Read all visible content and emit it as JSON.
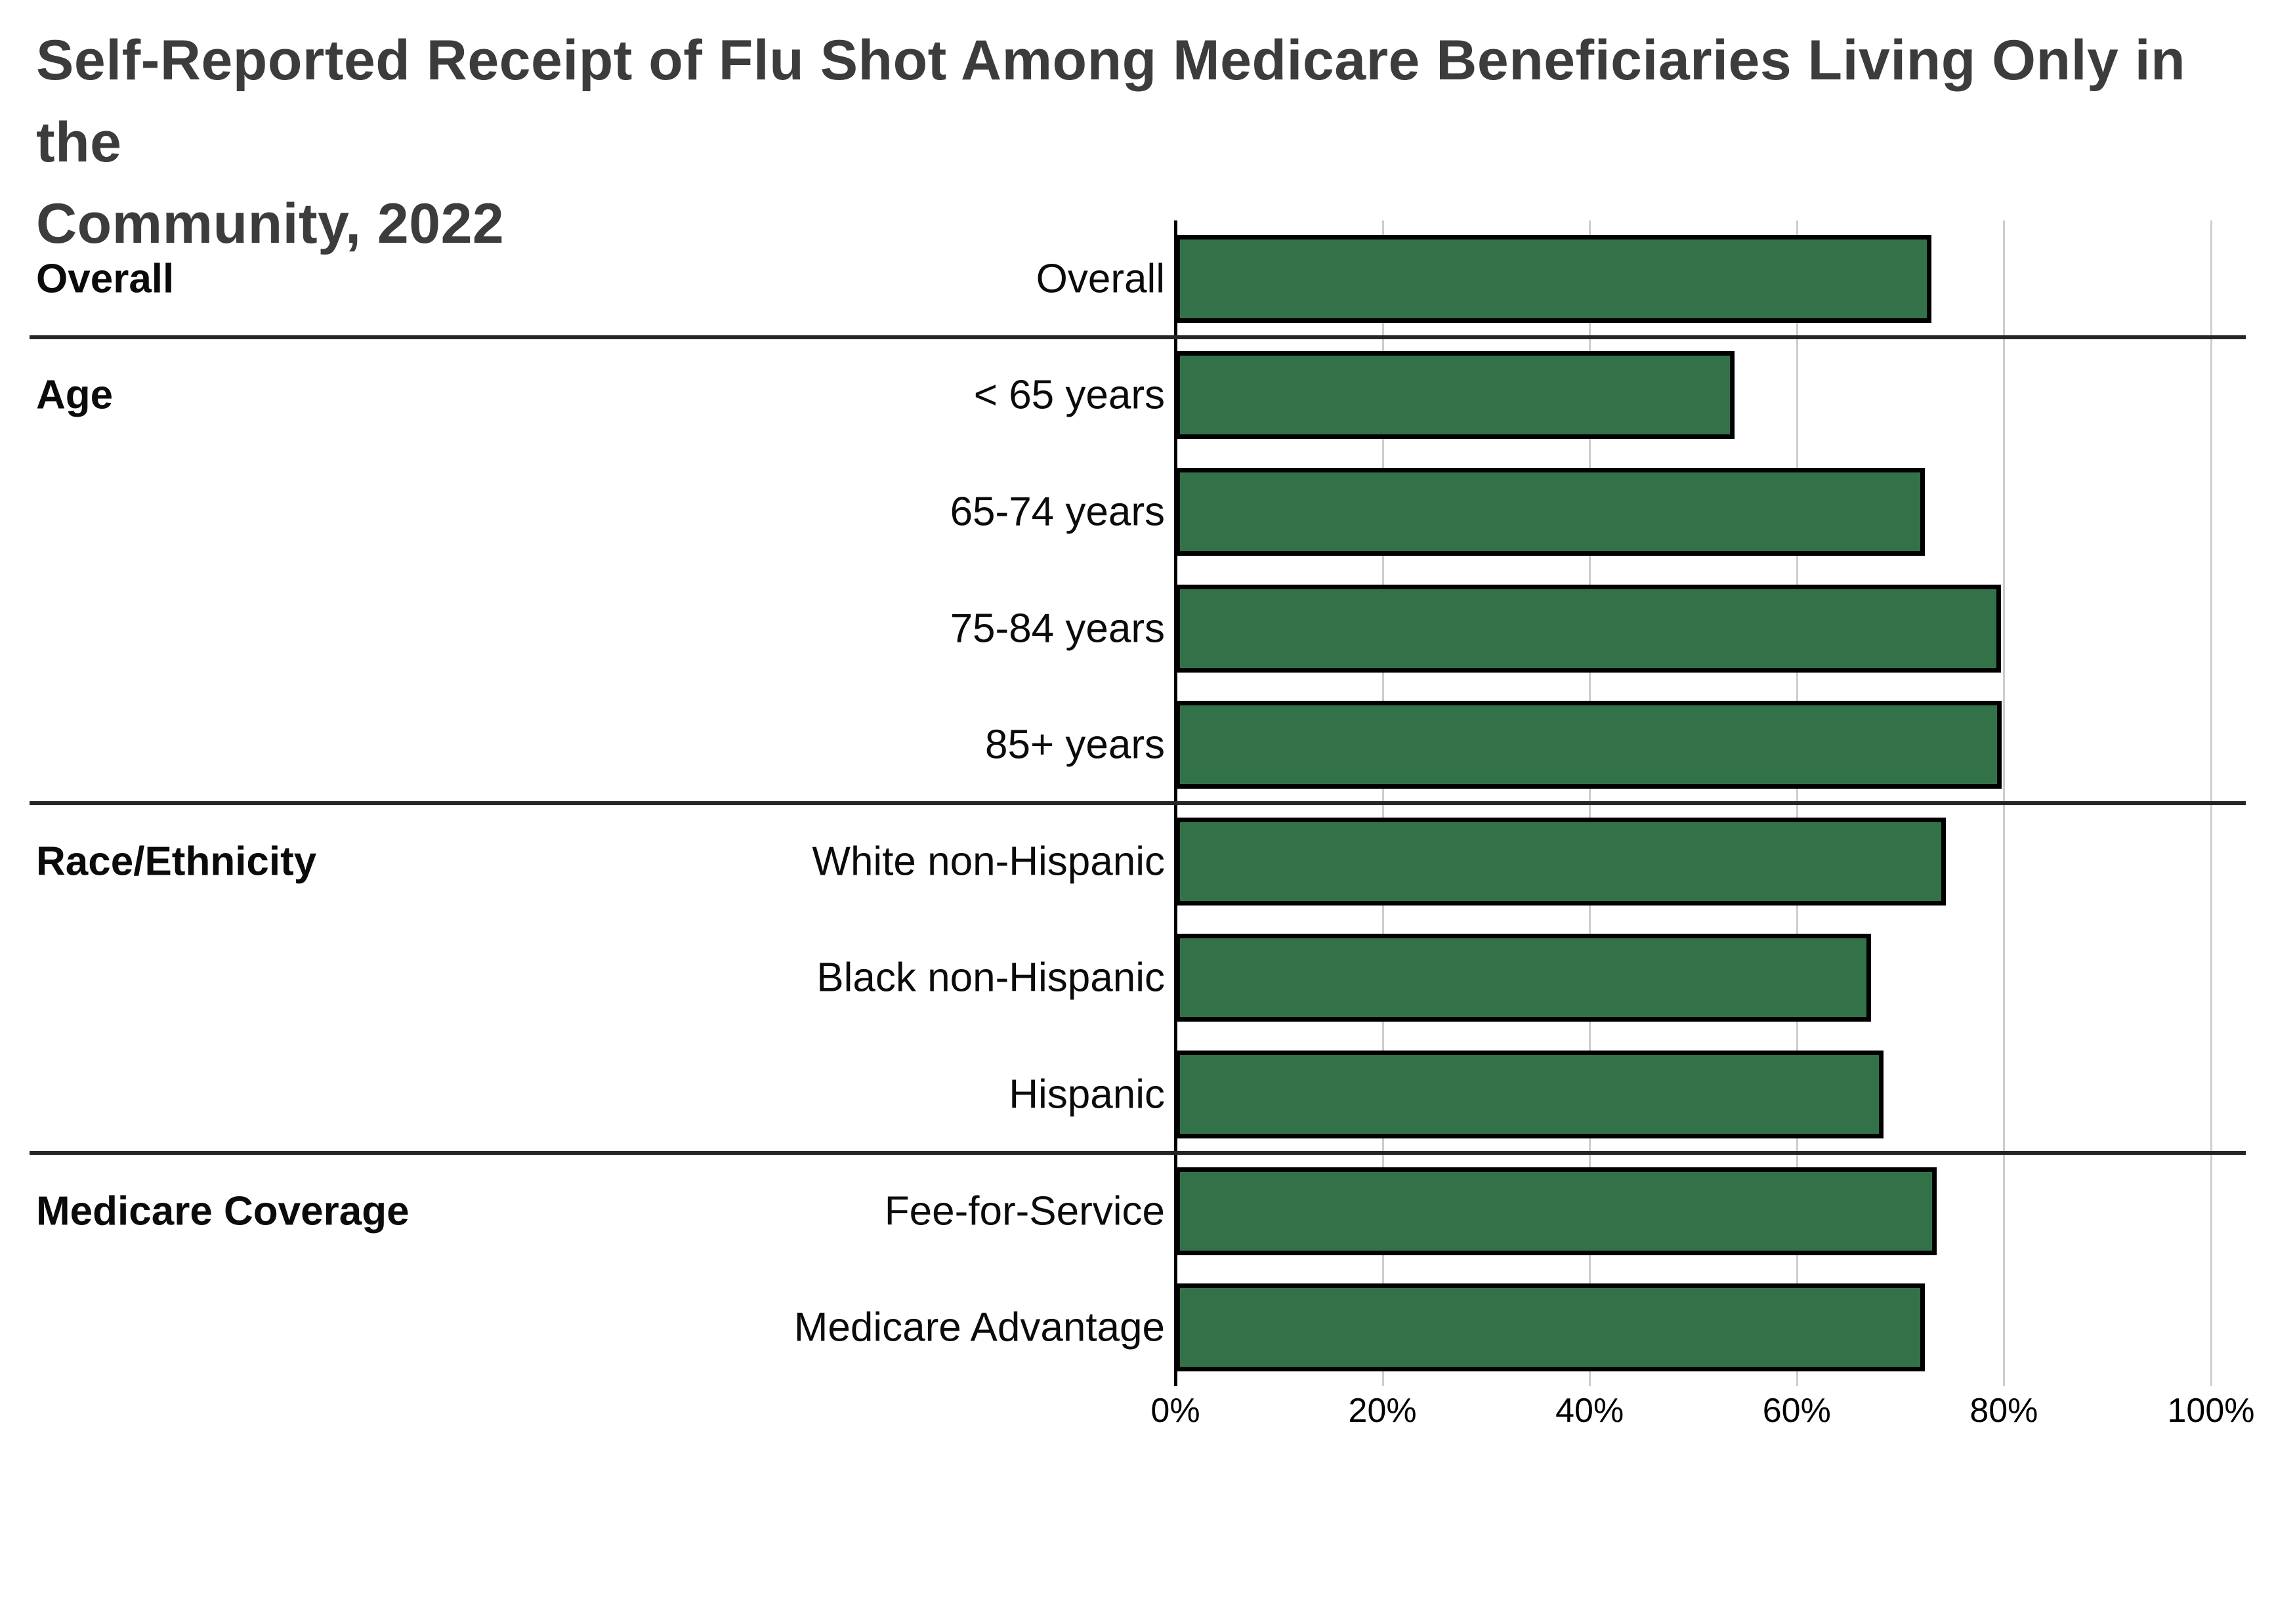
{
  "title": "Self-Reported Receipt of Flu Shot Among Medicare Beneficiaries Living Only in the\nCommunity, 2022",
  "chart_data": {
    "type": "bar",
    "orientation": "horizontal",
    "title": "Self-Reported Receipt of Flu Shot Among Medicare Beneficiaries Living Only in the Community, 2022",
    "xlim": [
      0,
      100
    ],
    "x_tick_labels": [
      "0%",
      "20%",
      "40%",
      "60%",
      "80%",
      "100%"
    ],
    "grid": true,
    "bar_color": "#337248",
    "bar_border_color": "#000000",
    "sections": [
      {
        "name": "Overall",
        "rows": [
          {
            "label": "Overall",
            "value": 73
          }
        ]
      },
      {
        "name": "Age",
        "rows": [
          {
            "label": "< 65 years",
            "value": 54
          },
          {
            "label": "65-74 years",
            "value": 72.4
          },
          {
            "label": "75-84 years",
            "value": 79.7
          },
          {
            "label": "85+ years",
            "value": 79.8
          }
        ]
      },
      {
        "name": "Race/Ethnicity",
        "rows": [
          {
            "label": "White non-Hispanic",
            "value": 74.4
          },
          {
            "label": "Black non-Hispanic",
            "value": 67.2
          },
          {
            "label": "Hispanic",
            "value": 68.4
          }
        ]
      },
      {
        "name": "Medicare Coverage",
        "rows": [
          {
            "label": "Fee-for-Service",
            "value": 73.5
          },
          {
            "label": "Medicare Advantage",
            "value": 72.4
          }
        ]
      }
    ]
  }
}
